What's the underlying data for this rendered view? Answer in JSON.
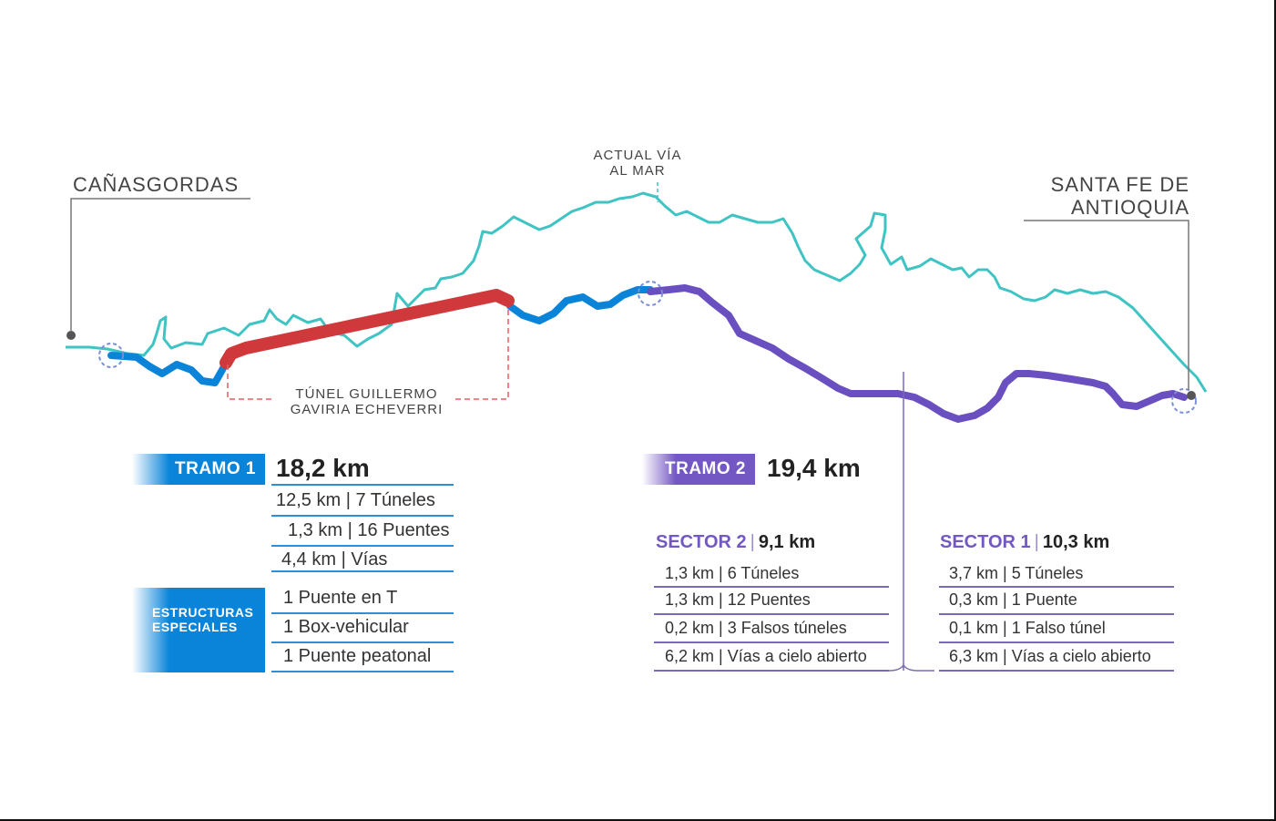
{
  "labels": {
    "origin_city": "CAÑASGORDAS",
    "destination_city_line1": "SANTA FE DE",
    "destination_city_line2": "ANTIOQUIA",
    "current_road_line1": "ACTUAL VÍA",
    "current_road_line2": "AL MAR",
    "tunnel_line1": "TÚNEL GUILLERMO",
    "tunnel_line2": "GAVIRIA ECHEVERRI"
  },
  "tramo1": {
    "tag": "TRAMO 1",
    "length": "18,2 km",
    "rows": [
      "12,5 km | 7 Túneles",
      "1,3 km | 16 Puentes",
      "4,4 km | Vías"
    ],
    "special_tag_line1": "ESTRUCTURAS",
    "special_tag_line2": "ESPECIALES",
    "special_rows": [
      "1 Puente en T",
      "1 Box-vehicular",
      "1 Puente peatonal"
    ]
  },
  "tramo2": {
    "tag": "TRAMO 2",
    "length": "19,4 km",
    "sector2": {
      "name": "SECTOR 2",
      "length": "9,1 km",
      "rows": [
        "1,3 km | 6 Túneles",
        "1,3 km | 12 Puentes",
        "0,2 km | 3 Falsos túneles",
        "6,2 km | Vías a cielo abierto"
      ]
    },
    "sector1": {
      "name": "SECTOR 1",
      "length": "10,3 km",
      "rows": [
        "3,7 km | 5 Túneles",
        "0,3 km | 1 Puente",
        "0,1 km | 1 Falso túnel",
        "6,3 km | Vías a cielo abierto"
      ]
    }
  },
  "colors": {
    "current_road": "#3fc3c3",
    "tramo1_route": "#0a84d8",
    "tunnel": "#d0393b",
    "tramo2_route": "#6a4fc0",
    "leader_line": "#777777"
  },
  "icons": {
    "separator": "|"
  }
}
